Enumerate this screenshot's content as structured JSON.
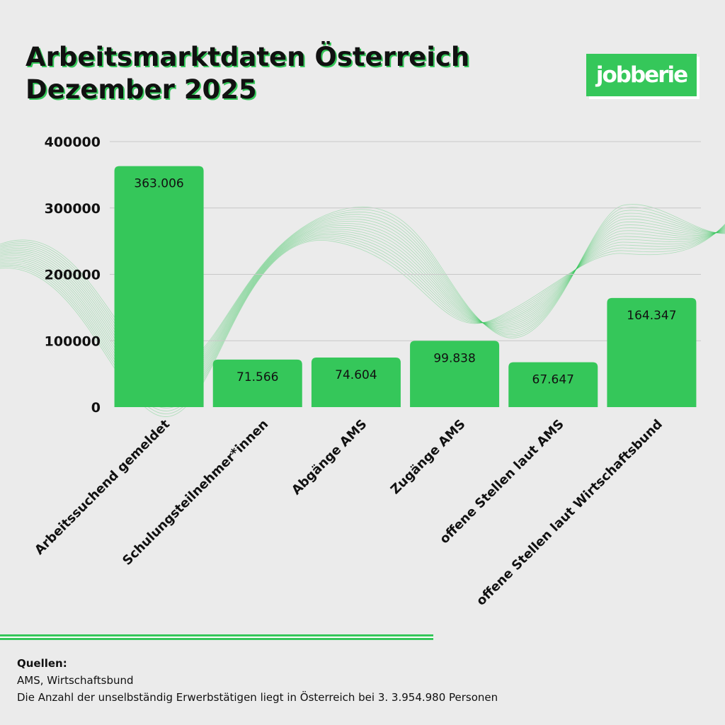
{
  "chart_data": {
    "type": "bar",
    "title": [
      "Arbeitsmarktdaten Österreich",
      "Dezember 2025"
    ],
    "categories": [
      "Arbeitssuchend gemeldet",
      "Schulungsteilnehmer*innen",
      "Abgänge AMS",
      "Zugänge AMS",
      "offene Stellen laut AMS",
      "offene Stellen laut Wirtschaftsbund"
    ],
    "values": [
      363006,
      71566,
      74604,
      99838,
      67647,
      164347
    ],
    "value_labels": [
      "363.006",
      "71.566",
      "74.604",
      "99.838",
      "67.647",
      "164.347"
    ],
    "ylim": [
      0,
      400000
    ],
    "yticks": [
      0,
      100000,
      200000,
      300000,
      400000
    ],
    "ytick_labels": [
      "0",
      "100000",
      "200000",
      "300000",
      "400000"
    ],
    "xlabel": "",
    "ylabel": "",
    "grid": true,
    "bar_color": "#35c75a"
  },
  "logo": {
    "text": "jobberie",
    "color": "#35c75a"
  },
  "sources": {
    "heading": "Quellen:",
    "line1": "AMS, Wirtschaftsbund",
    "line2": "Die Anzahl der unselbständig Erwerbstätigen liegt in Österreich bei 3. 3.954.980 Personen"
  }
}
